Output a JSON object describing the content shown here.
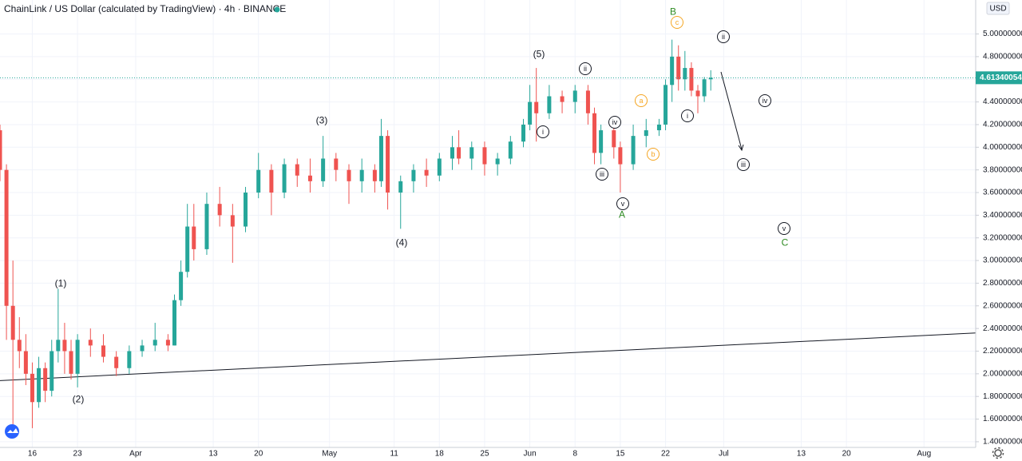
{
  "chart_data": {
    "type": "candlestick",
    "title": "ChainLink / US Dollar (calculated by TradingView) · 4h · BINANCE",
    "currency": "USD",
    "up_color": "#26a69a",
    "down_color": "#ef5350",
    "grid": true,
    "x": [
      "03-11",
      "03-12",
      "03-13",
      "03-14",
      "03-15",
      "03-16",
      "03-17",
      "03-18",
      "03-19",
      "03-20",
      "03-21",
      "03-22",
      "03-23",
      "03-25",
      "03-27",
      "03-29",
      "03-31",
      "04-02",
      "04-04",
      "04-06",
      "04-07",
      "04-08",
      "04-09",
      "04-10",
      "04-12",
      "04-14",
      "04-16",
      "04-18",
      "04-20",
      "04-22",
      "04-24",
      "04-26",
      "04-28",
      "04-30",
      "05-02",
      "05-04",
      "05-06",
      "05-08",
      "05-09",
      "05-10",
      "05-12",
      "05-14",
      "05-16",
      "05-18",
      "05-20",
      "05-21",
      "05-23",
      "05-25",
      "05-27",
      "05-29",
      "05-31",
      "06-01",
      "06-02",
      "06-04",
      "06-06",
      "06-08",
      "06-10",
      "06-11",
      "06-12",
      "06-14",
      "06-15",
      "06-17",
      "06-19",
      "06-21",
      "06-22",
      "06-23",
      "06-24",
      "06-25",
      "06-26",
      "06-27",
      "06-28",
      "06-29"
    ],
    "open": [
      4.15,
      3.8,
      2.6,
      2.3,
      2.2,
      2.0,
      1.75,
      2.05,
      1.85,
      2.2,
      2.3,
      2.2,
      2.0,
      2.3,
      2.25,
      2.15,
      2.05,
      2.2,
      2.25,
      2.3,
      2.25,
      2.65,
      2.9,
      3.3,
      3.1,
      3.5,
      3.4,
      3.3,
      3.6,
      3.8,
      3.6,
      3.85,
      3.75,
      3.7,
      3.9,
      3.8,
      3.7,
      3.8,
      3.7,
      4.1,
      3.6,
      3.7,
      3.8,
      3.75,
      3.9,
      4.0,
      3.9,
      4.0,
      3.85,
      3.9,
      4.05,
      4.2,
      4.4,
      4.3,
      4.45,
      4.4,
      4.5,
      4.3,
      3.95,
      4.15,
      4.0,
      3.85,
      4.1,
      4.15,
      4.2,
      4.55,
      4.8,
      4.6,
      4.7,
      4.5,
      4.45,
      4.6
    ],
    "high": [
      4.2,
      3.85,
      3.0,
      2.5,
      2.35,
      2.1,
      2.15,
      2.1,
      2.3,
      2.75,
      2.45,
      2.3,
      2.35,
      2.4,
      2.35,
      2.2,
      2.25,
      2.3,
      2.45,
      2.35,
      2.7,
      3.0,
      3.5,
      3.5,
      3.6,
      3.65,
      3.5,
      3.65,
      3.95,
      3.85,
      3.9,
      3.9,
      3.9,
      4.1,
      3.95,
      3.85,
      3.9,
      3.85,
      4.25,
      4.15,
      3.75,
      3.85,
      3.9,
      3.95,
      4.1,
      4.15,
      4.05,
      4.05,
      3.95,
      4.1,
      4.25,
      4.55,
      4.7,
      4.55,
      4.5,
      4.55,
      4.55,
      4.35,
      4.2,
      4.2,
      4.05,
      4.2,
      4.25,
      4.25,
      4.6,
      4.95,
      4.9,
      4.85,
      4.75,
      4.55,
      4.62,
      4.68
    ],
    "low": [
      3.7,
      2.3,
      1.55,
      2.05,
      1.9,
      1.52,
      1.7,
      1.75,
      1.8,
      2.1,
      2.0,
      1.95,
      1.88,
      2.15,
      2.1,
      1.98,
      2.0,
      2.15,
      2.2,
      2.2,
      2.25,
      2.6,
      2.85,
      3.0,
      3.05,
      3.3,
      2.98,
      3.25,
      3.55,
      3.4,
      3.55,
      3.65,
      3.6,
      3.65,
      3.7,
      3.5,
      3.6,
      3.6,
      3.65,
      3.45,
      3.28,
      3.6,
      3.65,
      3.7,
      3.8,
      3.85,
      3.8,
      3.75,
      3.75,
      3.85,
      4.0,
      4.15,
      4.05,
      4.25,
      4.3,
      4.3,
      4.2,
      3.85,
      3.85,
      3.9,
      3.6,
      3.8,
      4.0,
      4.1,
      4.15,
      4.4,
      4.5,
      4.5,
      4.45,
      4.3,
      4.4,
      4.5
    ],
    "close": [
      3.8,
      2.6,
      2.3,
      2.2,
      2.0,
      1.75,
      2.05,
      1.85,
      2.2,
      2.3,
      2.2,
      2.0,
      2.3,
      2.25,
      2.15,
      2.05,
      2.2,
      2.25,
      2.3,
      2.25,
      2.65,
      2.9,
      3.3,
      3.1,
      3.5,
      3.4,
      3.3,
      3.6,
      3.8,
      3.6,
      3.85,
      3.75,
      3.7,
      3.9,
      3.8,
      3.7,
      3.8,
      3.7,
      4.1,
      3.6,
      3.7,
      3.8,
      3.75,
      3.9,
      4.0,
      3.9,
      4.0,
      3.85,
      3.9,
      4.05,
      4.2,
      4.4,
      4.3,
      4.45,
      4.4,
      4.5,
      4.3,
      3.95,
      4.15,
      4.0,
      3.85,
      4.1,
      4.15,
      4.2,
      4.55,
      4.8,
      4.6,
      4.7,
      4.5,
      4.45,
      4.6,
      4.6134
    ],
    "xlim": [
      "03-11",
      "08-09"
    ],
    "ylim": [
      1.35,
      5.3
    ],
    "xticks": [
      {
        "value": "03-16",
        "label": "16"
      },
      {
        "value": "03-23",
        "label": "23"
      },
      {
        "value": "04-01",
        "label": "Apr"
      },
      {
        "value": "04-13",
        "label": "13"
      },
      {
        "value": "04-20",
        "label": "20"
      },
      {
        "value": "05-01",
        "label": "May"
      },
      {
        "value": "05-11",
        "label": "11"
      },
      {
        "value": "05-18",
        "label": "18"
      },
      {
        "value": "05-25",
        "label": "25"
      },
      {
        "value": "06-01",
        "label": "Jun"
      },
      {
        "value": "06-08",
        "label": "8"
      },
      {
        "value": "06-15",
        "label": "15"
      },
      {
        "value": "06-22",
        "label": "22"
      },
      {
        "value": "07-01",
        "label": "Jul"
      },
      {
        "value": "07-13",
        "label": "13"
      },
      {
        "value": "07-20",
        "label": "20"
      },
      {
        "value": "08-01",
        "label": "Aug"
      }
    ],
    "yticks": [
      {
        "value": 1.4,
        "label": "1.40000000"
      },
      {
        "value": 1.6,
        "label": "1.60000000"
      },
      {
        "value": 1.8,
        "label": "1.80000000"
      },
      {
        "value": 2.0,
        "label": "2.00000000"
      },
      {
        "value": 2.2,
        "label": "2.20000000"
      },
      {
        "value": 2.4,
        "label": "2.40000000"
      },
      {
        "value": 2.6,
        "label": "2.60000000"
      },
      {
        "value": 2.8,
        "label": "2.80000000"
      },
      {
        "value": 3.0,
        "label": "3.00000000"
      },
      {
        "value": 3.2,
        "label": "3.20000000"
      },
      {
        "value": 3.4,
        "label": "3.40000000"
      },
      {
        "value": 3.6,
        "label": "3.60000000"
      },
      {
        "value": 3.8,
        "label": "3.80000000"
      },
      {
        "value": 4.0,
        "label": "4.00000000"
      },
      {
        "value": 4.2,
        "label": "4.20000000"
      },
      {
        "value": 4.4,
        "label": "4.40000000"
      },
      {
        "value": 4.6,
        "label": "4.60000000"
      },
      {
        "value": 4.8,
        "label": "4.80000000"
      },
      {
        "value": 5.0,
        "label": "5.00000000"
      }
    ],
    "last_price": {
      "value": 4.61340054,
      "label": "4.61340054"
    },
    "trendline": {
      "x": [
        "03-11",
        "08-09"
      ],
      "values": [
        1.94,
        2.36
      ]
    },
    "annotations": [
      {
        "text": "(1)",
        "color": "#131722",
        "circled": false
      },
      {
        "text": "(2)",
        "color": "#131722",
        "circled": false
      },
      {
        "text": "(3)",
        "color": "#131722",
        "circled": false
      },
      {
        "text": "(4)",
        "color": "#131722",
        "circled": false
      },
      {
        "text": "(5)",
        "color": "#131722",
        "circled": false
      },
      {
        "text": "i",
        "color": "#131722",
        "circled": true
      },
      {
        "text": "ii",
        "color": "#131722",
        "circled": true
      },
      {
        "text": "iii",
        "color": "#131722",
        "circled": true
      },
      {
        "text": "iv",
        "color": "#131722",
        "circled": true
      },
      {
        "text": "v",
        "color": "#131722",
        "circled": true
      },
      {
        "text": "A",
        "color": "#2e8b22",
        "circled": false
      },
      {
        "text": "a",
        "color": "#f5a623",
        "circled": true
      },
      {
        "text": "b",
        "color": "#f5a623",
        "circled": true
      },
      {
        "text": "c",
        "color": "#f5a623",
        "circled": true
      },
      {
        "text": "B",
        "color": "#2e8b22",
        "circled": false
      },
      {
        "text": "i",
        "color": "#131722",
        "circled": true
      },
      {
        "text": "ii",
        "color": "#131722",
        "circled": true
      },
      {
        "text": "iii",
        "color": "#131722",
        "circled": true
      },
      {
        "text": "iv",
        "color": "#131722",
        "circled": true
      },
      {
        "text": "v",
        "color": "#131722",
        "circled": true
      },
      {
        "text": "C",
        "color": "#2e8b22",
        "circled": false
      }
    ]
  }
}
